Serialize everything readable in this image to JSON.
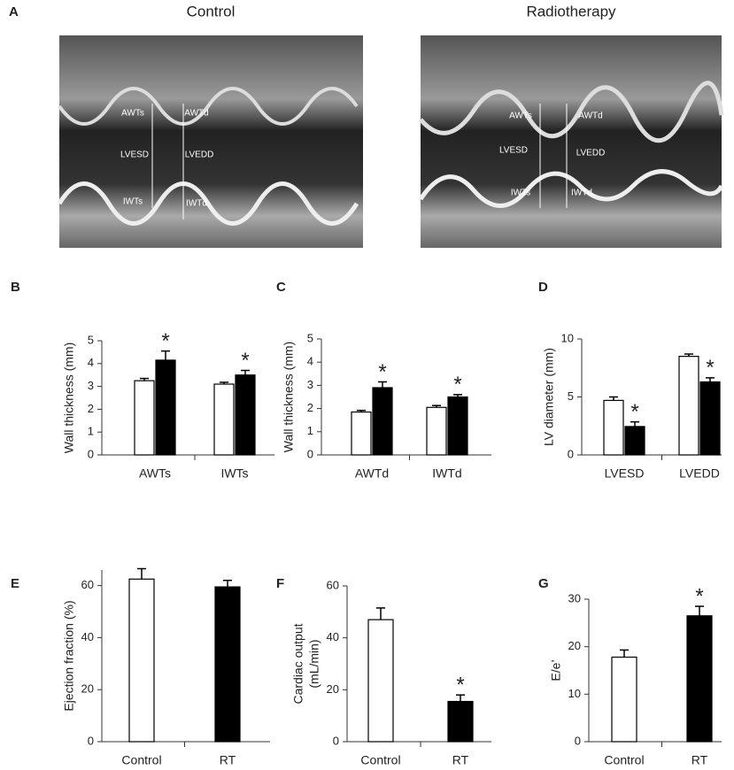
{
  "figure": {
    "panel": "A",
    "images": [
      {
        "title": "Control",
        "labels": [
          "AWTs",
          "LVESD",
          "IWTs",
          "AWTd",
          "LVEDD",
          "IWTd"
        ]
      },
      {
        "title": "Radiotherapy",
        "labels": [
          "AWTs",
          "LVESD",
          "IWTs",
          "AWTd",
          "LVEDD",
          "IWTd"
        ]
      }
    ]
  },
  "chart_data": [
    {
      "type": "bar",
      "panel": "B",
      "ylabel": [
        "Wall thickness (mm)"
      ],
      "categories": [
        "AWTs",
        "IWTs"
      ],
      "ylim": [
        0,
        5
      ],
      "yticks": [
        0,
        1,
        2,
        3,
        4,
        5
      ],
      "series": [
        {
          "color": "#ffffff",
          "values": [
            3.25,
            3.1
          ],
          "errors": [
            0.1,
            0.08
          ]
        },
        {
          "color": "#000000",
          "values": [
            4.15,
            3.5
          ],
          "errors": [
            0.4,
            0.2
          ],
          "annotations": [
            "*",
            "*"
          ]
        }
      ]
    },
    {
      "type": "bar",
      "panel": "C",
      "ylabel": [
        "Wall thickness (mm)"
      ],
      "categories": [
        "AWTd",
        "IWTd"
      ],
      "ylim": [
        0,
        5
      ],
      "yticks": [
        0,
        1,
        2,
        3,
        4,
        5
      ],
      "series": [
        {
          "color": "#ffffff",
          "values": [
            1.85,
            2.05
          ],
          "errors": [
            0.07,
            0.08
          ]
        },
        {
          "color": "#000000",
          "values": [
            2.9,
            2.5
          ],
          "errors": [
            0.25,
            0.1
          ],
          "annotations": [
            "*",
            "*"
          ]
        }
      ]
    },
    {
      "type": "bar",
      "panel": "D",
      "ylabel": [
        "LV diameter (mm)"
      ],
      "categories": [
        "LVESD",
        "LVEDD"
      ],
      "ylim": [
        0,
        10
      ],
      "yticks": [
        0,
        5,
        10
      ],
      "series": [
        {
          "color": "#ffffff",
          "values": [
            4.7,
            8.5
          ],
          "errors": [
            0.3,
            0.2
          ]
        },
        {
          "color": "#000000",
          "values": [
            2.45,
            6.3
          ],
          "errors": [
            0.4,
            0.35
          ],
          "annotations": [
            "*",
            "*"
          ]
        }
      ]
    },
    {
      "type": "bar",
      "panel": "E",
      "ylabel": [
        "Ejection fraction (%)"
      ],
      "categories": [
        "Control",
        "RT"
      ],
      "ylim": [
        0,
        66
      ],
      "yticks": [
        0,
        20,
        40,
        60
      ],
      "series": [
        {
          "colors": [
            "#ffffff",
            "#000000"
          ],
          "values": [
            62.5,
            59.5
          ],
          "errors": [
            4,
            2.5
          ]
        }
      ]
    },
    {
      "type": "bar",
      "panel": "F",
      "ylabel": [
        "Cardiac output",
        "(mL/min)"
      ],
      "categories": [
        "Control",
        "RT"
      ],
      "ylim": [
        0,
        60
      ],
      "yticks": [
        0,
        20,
        40,
        60
      ],
      "series": [
        {
          "colors": [
            "#ffffff",
            "#000000"
          ],
          "values": [
            47,
            15.5
          ],
          "errors": [
            4.5,
            2.5
          ],
          "annotations": [
            null,
            "*"
          ]
        }
      ]
    },
    {
      "type": "bar",
      "panel": "G",
      "ylabel": [
        "E/e’"
      ],
      "categories": [
        "Control",
        "RT"
      ],
      "ylim": [
        0,
        30
      ],
      "yticks": [
        0,
        10,
        20,
        30
      ],
      "series": [
        {
          "colors": [
            "#ffffff",
            "#000000"
          ],
          "values": [
            17.8,
            26.5
          ],
          "errors": [
            1.5,
            2
          ],
          "annotations": [
            null,
            "*"
          ]
        }
      ]
    }
  ]
}
